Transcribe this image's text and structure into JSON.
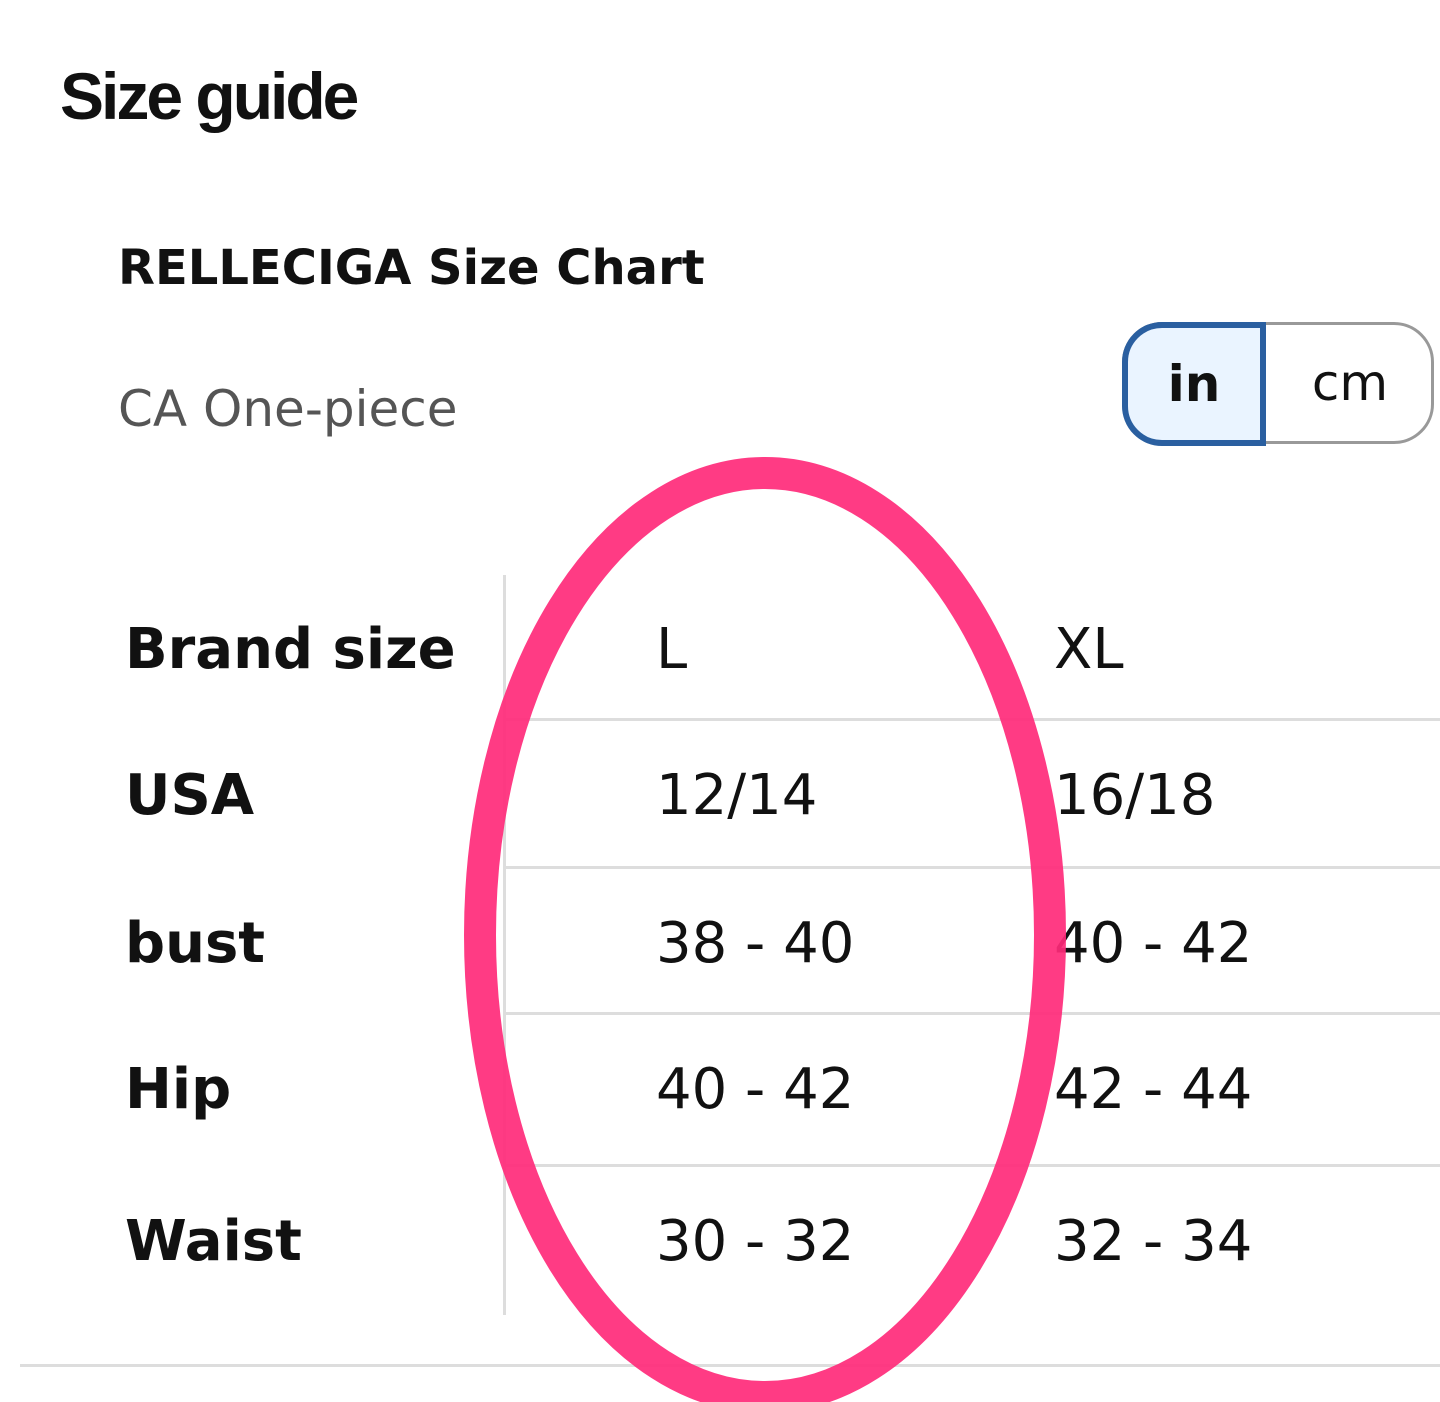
{
  "header": {
    "title": "Size guide"
  },
  "chart": {
    "title": "RELLECIGA Size Chart",
    "subtitle": "CA One-piece",
    "units": [
      "in",
      "cm"
    ]
  },
  "table": {
    "header": [
      "Brand size",
      "L",
      "XL"
    ],
    "rows": [
      [
        "USA",
        "12/14",
        "16/18"
      ],
      [
        "bust",
        "38 - 40",
        "40 - 42"
      ],
      [
        "Hip",
        "40 - 42",
        "42 - 44"
      ],
      [
        "Waist",
        "30 - 32",
        "32 - 34"
      ]
    ]
  }
}
